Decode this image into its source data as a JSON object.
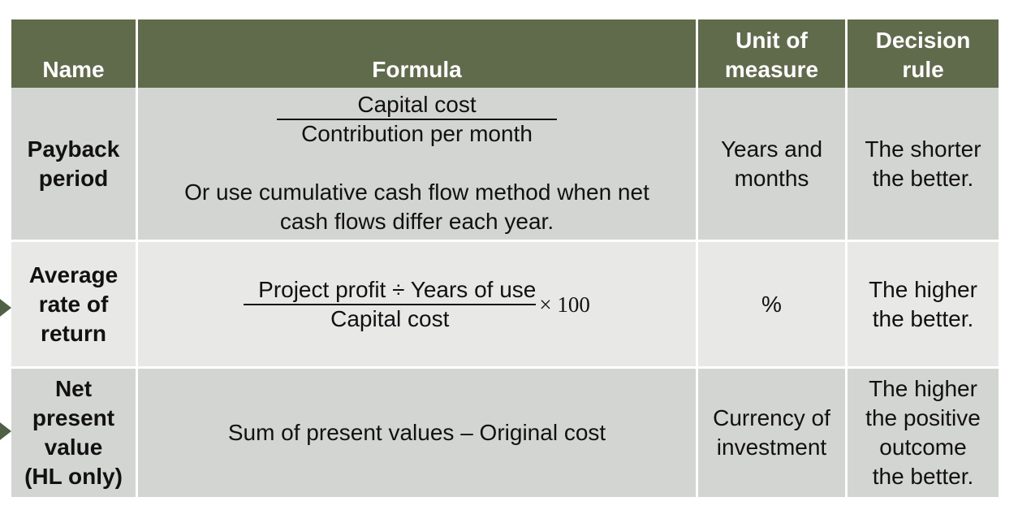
{
  "headers": {
    "name": "Name",
    "formula": "Formula",
    "unit": [
      "Unit of",
      "measure"
    ],
    "decision": [
      "Decision",
      "rule"
    ]
  },
  "rows": [
    {
      "name": [
        "Payback",
        "period"
      ],
      "numerator": "Capital cost",
      "denominator": "Contribution per month",
      "note": [
        "Or use cumulative cash flow method when net",
        "cash flows differ each year."
      ],
      "unit": [
        "Years and",
        "months"
      ],
      "decision": [
        "The shorter",
        "the better."
      ]
    },
    {
      "name": [
        "Average",
        "rate of",
        "return"
      ],
      "numerator": "Project profit ÷ Years of use",
      "denominator": "Capital cost",
      "multiplier": "× 100",
      "unit": "%",
      "decision": [
        "The higher",
        "the better."
      ]
    },
    {
      "name": [
        "Net",
        "present",
        "value",
        "(HL only)"
      ],
      "formula": "Sum of present values – Original cost",
      "unit": [
        "Currency of",
        "investment"
      ],
      "decision": [
        "The higher",
        "the positive",
        "outcome",
        "the better."
      ]
    }
  ],
  "colors": {
    "header_bg": "#5f6b4a",
    "row_light": "#e8e8e7",
    "row_dark": "#d3d5d2",
    "arrow": "#4f6046"
  }
}
